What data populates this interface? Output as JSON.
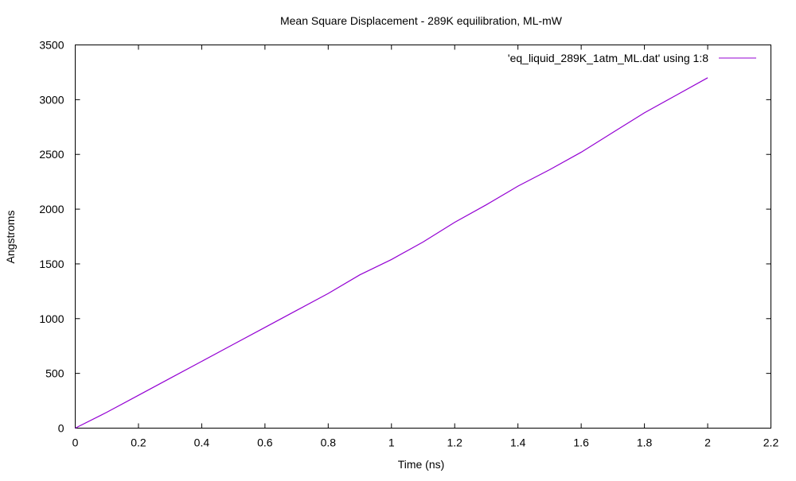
{
  "chart_data": {
    "type": "line",
    "title": "Mean Square Displacement - 289K equilibration, ML-mW",
    "xlabel": "Time (ns)",
    "ylabel": "Angstroms",
    "xlim": [
      0,
      2.2
    ],
    "ylim": [
      0,
      3500
    ],
    "xticks": [
      0,
      0.2,
      0.4,
      0.6,
      0.8,
      1,
      1.2,
      1.4,
      1.6,
      1.8,
      2,
      2.2
    ],
    "yticks": [
      0,
      500,
      1000,
      1500,
      2000,
      2500,
      3000,
      3500
    ],
    "xtick_labels": [
      "0",
      "0.2",
      "0.4",
      "0.6",
      "0.8",
      "1",
      "1.2",
      "1.4",
      "1.6",
      "1.8",
      "2",
      "2.2"
    ],
    "ytick_labels": [
      "0",
      "500",
      "1000",
      "1500",
      "2000",
      "2500",
      "3000",
      "3500"
    ],
    "grid": false,
    "legend_position": "top-right",
    "series": [
      {
        "name": "'eq_liquid_289K_1atm_ML.dat' using 1:8",
        "color": "#9400d3",
        "x": [
          0,
          0.1,
          0.2,
          0.3,
          0.4,
          0.5,
          0.6,
          0.7,
          0.8,
          0.9,
          1.0,
          1.1,
          1.2,
          1.3,
          1.4,
          1.5,
          1.6,
          1.7,
          1.8,
          1.9,
          2.0
        ],
        "values": [
          0,
          145,
          300,
          455,
          610,
          765,
          920,
          1075,
          1230,
          1400,
          1540,
          1700,
          1880,
          2040,
          2210,
          2360,
          2520,
          2700,
          2880,
          3040,
          3200
        ]
      }
    ]
  }
}
